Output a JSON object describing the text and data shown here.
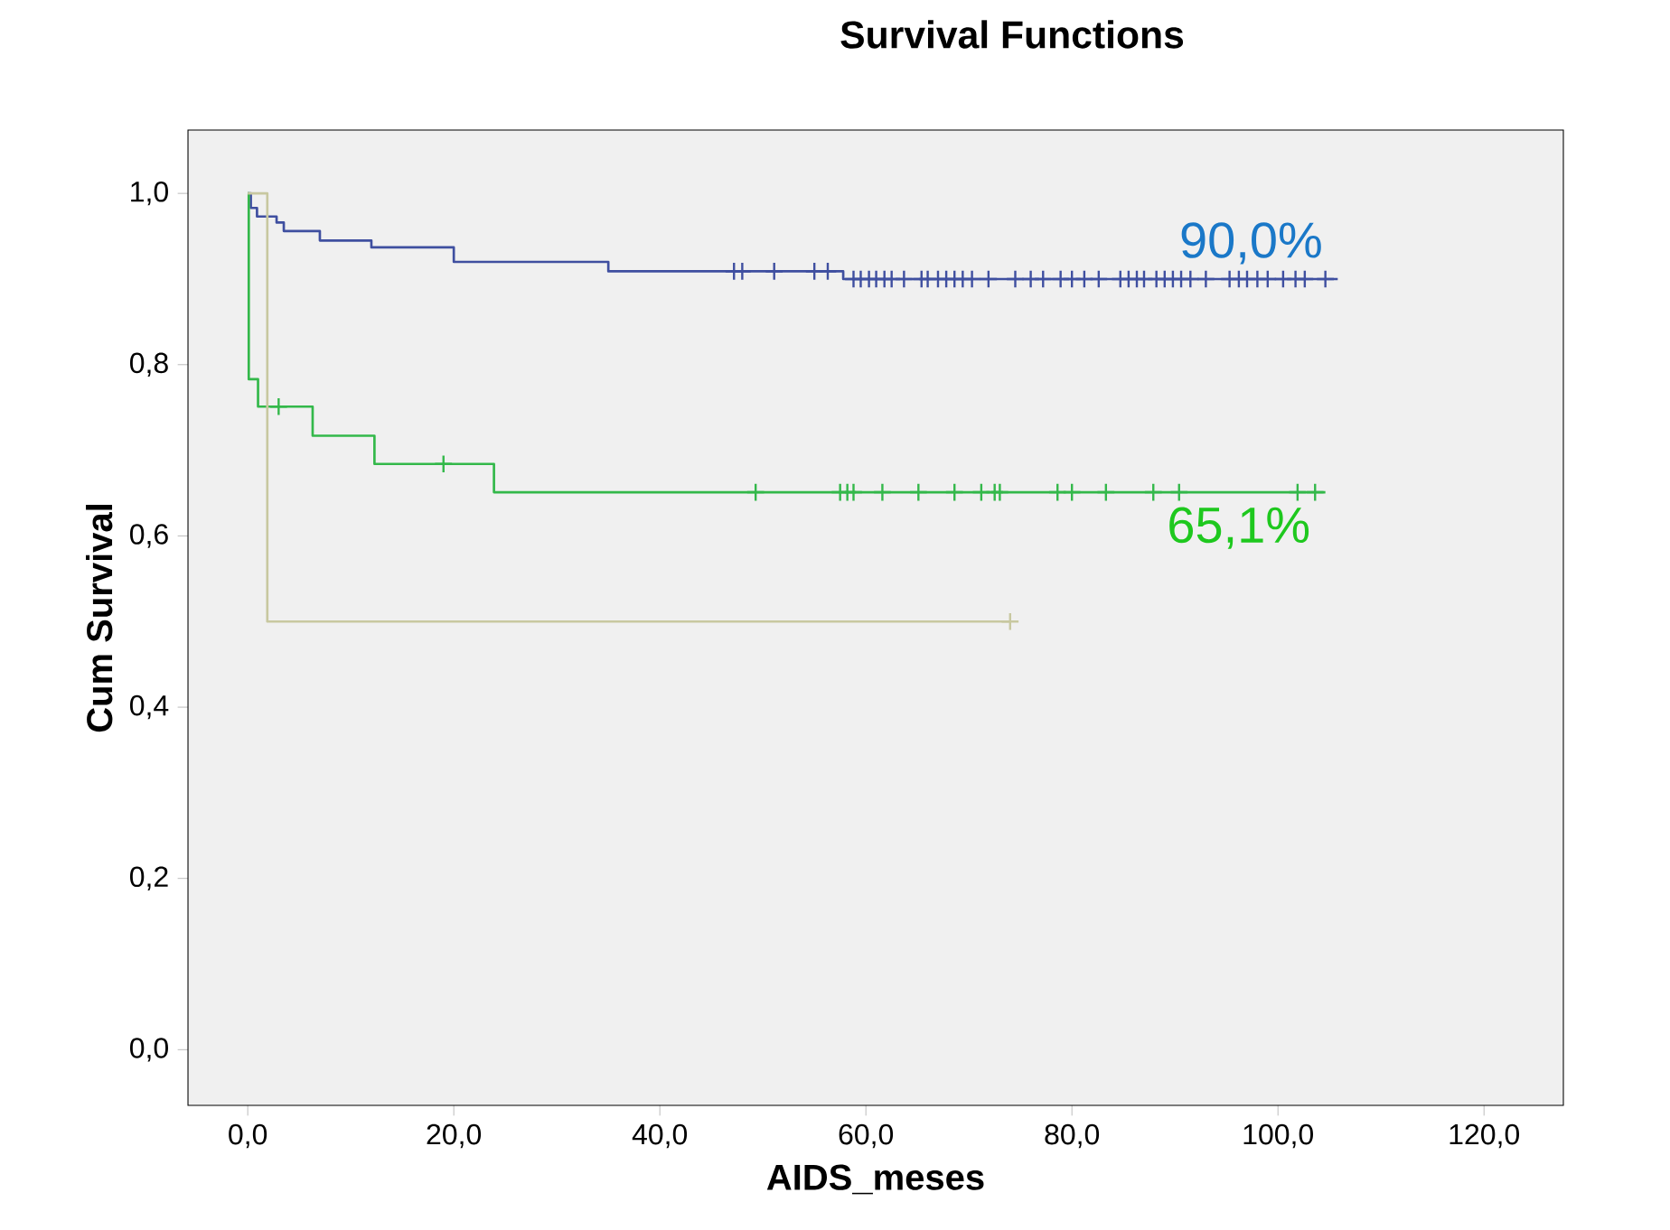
{
  "chart_data": {
    "type": "step",
    "title": "Survival Functions",
    "xlabel": "AIDS_meses",
    "ylabel": "Cum Survival",
    "xlim": [
      -5.8,
      127.7
    ],
    "ylim": [
      -0.065,
      1.074
    ],
    "xticks": [
      {
        "value": 0,
        "label": "0,0"
      },
      {
        "value": 20,
        "label": "20,0"
      },
      {
        "value": 40,
        "label": "40,0"
      },
      {
        "value": 60,
        "label": "60,0"
      },
      {
        "value": 80,
        "label": "80,0"
      },
      {
        "value": 100,
        "label": "100,0"
      },
      {
        "value": 120,
        "label": "120,0"
      }
    ],
    "yticks": [
      {
        "value": 0,
        "label": "0,0"
      },
      {
        "value": 0.2,
        "label": "0,2"
      },
      {
        "value": 0.4,
        "label": "0,4"
      },
      {
        "value": 0.6,
        "label": "0,6"
      },
      {
        "value": 0.8,
        "label": "0,8"
      },
      {
        "value": 1.0,
        "label": "1,0"
      }
    ],
    "grid": false,
    "series": [
      {
        "color": "#3f4fa0",
        "x": [
          0,
          0.3,
          0.9,
          2.8,
          3.5,
          7,
          12,
          20,
          35,
          57.8,
          105.8
        ],
        "values": [
          1,
          0.983,
          0.973,
          0.966,
          0.956,
          0.945,
          0.937,
          0.92,
          0.909,
          0.9,
          0.9
        ]
      },
      {
        "color": "#33b84a",
        "x": [
          0,
          0.1,
          1,
          6.3,
          12.3,
          23.9,
          104.6
        ],
        "values": [
          1,
          0.783,
          0.751,
          0.717,
          0.684,
          0.651,
          0.651
        ]
      },
      {
        "color": "#c8c8a0",
        "x": [
          0,
          1.9,
          74
        ],
        "values": [
          1,
          0.5,
          0.5
        ]
      },
      {
        "type": "scatter",
        "marker": "cross",
        "color": "#3f4fa0",
        "x": [
          47.2,
          48,
          51.1,
          55,
          56.3,
          58.8,
          59.5,
          60.3,
          61,
          61.8,
          62.5,
          63.7,
          65.4,
          66,
          67,
          67.8,
          68.6,
          69.4,
          70.3,
          71.9,
          74.5,
          76,
          77.2,
          78.9,
          80,
          81.2,
          82.6,
          84.7,
          85.5,
          86.3,
          87,
          88.2,
          89,
          89.8,
          90.6,
          91.5,
          93,
          95.3,
          96.2,
          97,
          98,
          99,
          100.5,
          101.7,
          102.6,
          104.6
        ],
        "values": [
          0.909,
          0.909,
          0.909,
          0.909,
          0.909,
          0.9,
          0.9,
          0.9,
          0.9,
          0.9,
          0.9,
          0.9,
          0.9,
          0.9,
          0.9,
          0.9,
          0.9,
          0.9,
          0.9,
          0.9,
          0.9,
          0.9,
          0.9,
          0.9,
          0.9,
          0.9,
          0.9,
          0.9,
          0.9,
          0.9,
          0.9,
          0.9,
          0.9,
          0.9,
          0.9,
          0.9,
          0.9,
          0.9,
          0.9,
          0.9,
          0.9,
          0.9,
          0.9,
          0.9,
          0.9,
          0.9
        ]
      },
      {
        "type": "scatter",
        "marker": "cross",
        "color": "#33b84a",
        "x": [
          3,
          19,
          49.3,
          57.5,
          58.2,
          58.8,
          61.6,
          65.1,
          68.6,
          71.2,
          72.5,
          73,
          78.6,
          80,
          83.3,
          87.9,
          90.4,
          101.9,
          103.6
        ],
        "values": [
          0.751,
          0.684,
          0.651,
          0.651,
          0.651,
          0.651,
          0.651,
          0.651,
          0.651,
          0.651,
          0.651,
          0.651,
          0.651,
          0.651,
          0.651,
          0.651,
          0.651,
          0.651,
          0.651
        ]
      },
      {
        "type": "scatter",
        "marker": "cross",
        "color": "#c8c8a0",
        "x": [
          74
        ],
        "values": [
          0.5
        ]
      }
    ],
    "annotations": [
      {
        "text": "90,0%",
        "x": 105.8,
        "y": 0.9
      },
      {
        "text": "65,1%",
        "x": 104.6,
        "y": 0.651
      }
    ]
  }
}
